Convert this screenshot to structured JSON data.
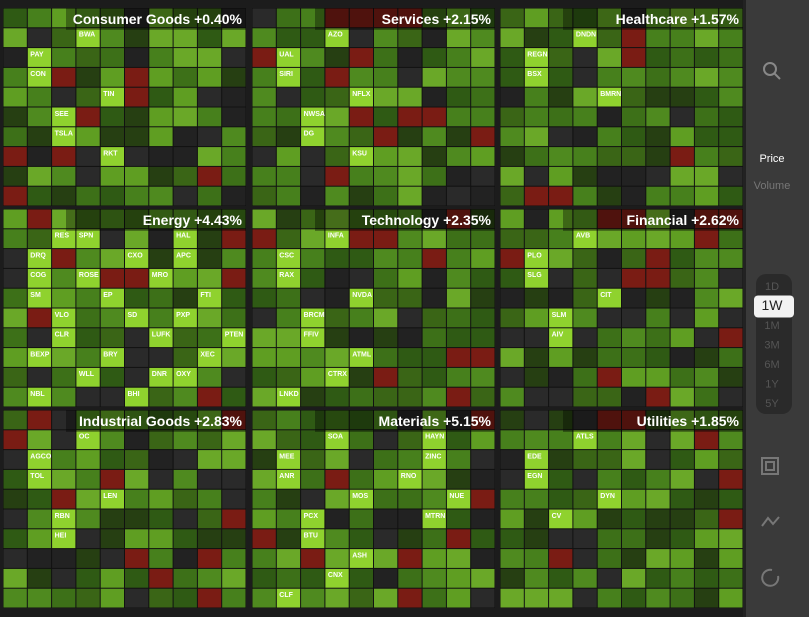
{
  "sectors": [
    {
      "name": "Consumer Goods",
      "change": "+0.40%",
      "tickers": [
        "BWA",
        "PAY",
        "CON",
        "TIN",
        "SEE",
        "TSLA",
        "RKT"
      ]
    },
    {
      "name": "Services",
      "change": "+2.15%",
      "tickers": [
        "AZO",
        "UAL",
        "SIRI",
        "NFLX",
        "NWSA",
        "DG",
        "KSU"
      ]
    },
    {
      "name": "Healthcare",
      "change": "+1.57%",
      "tickers": [
        "DNDN",
        "REGN",
        "BSX",
        "BMRN"
      ]
    },
    {
      "name": "Energy",
      "change": "+4.43%",
      "tickers": [
        "SPN",
        "DRQ",
        "COG",
        "EP",
        "VLO",
        "CLR",
        "BRY",
        "WLL",
        "NBL",
        "HAL",
        "APC",
        "MRO",
        "FTI",
        "PXP",
        "LUFK",
        "XEC",
        "OXY",
        "BHI",
        "RES",
        "CXO",
        "ROSE",
        "SM",
        "SD",
        "PTEN",
        "BEXP",
        "DNR"
      ]
    },
    {
      "name": "Technology",
      "change": "+2.35%",
      "tickers": [
        "INFA",
        "CSC",
        "RAX",
        "NVDA",
        "BRCM",
        "FFIV",
        "ATML",
        "CTRX",
        "LNKD"
      ]
    },
    {
      "name": "Financial",
      "change": "+2.62%",
      "tickers": [
        "AVB",
        "PLO",
        "SLG",
        "CIT",
        "SLM",
        "AIV"
      ]
    },
    {
      "name": "Industrial Goods",
      "change": "+2.83%",
      "tickers": [
        "OC",
        "AGCO",
        "TOL",
        "LEN",
        "RBN",
        "HEI"
      ]
    },
    {
      "name": "Materials",
      "change": "+5.15%",
      "tickers": [
        "SOA",
        "MEE",
        "ANR",
        "MOS",
        "PCX",
        "BTU",
        "ASH",
        "CNX",
        "CLF",
        "HAYN",
        "ZINC",
        "RNO",
        "NUE",
        "MTRN"
      ]
    },
    {
      "name": "Utilities",
      "change": "+1.85%",
      "tickers": [
        "ATLS",
        "EDE",
        "EGN",
        "DYN",
        "CV"
      ]
    }
  ],
  "sidebar": {
    "metrics": [
      "Price",
      "Volume"
    ],
    "ranges": [
      "1D",
      "1W",
      "1M",
      "3M",
      "6M",
      "1Y",
      "5Y"
    ],
    "selected": "1W"
  }
}
